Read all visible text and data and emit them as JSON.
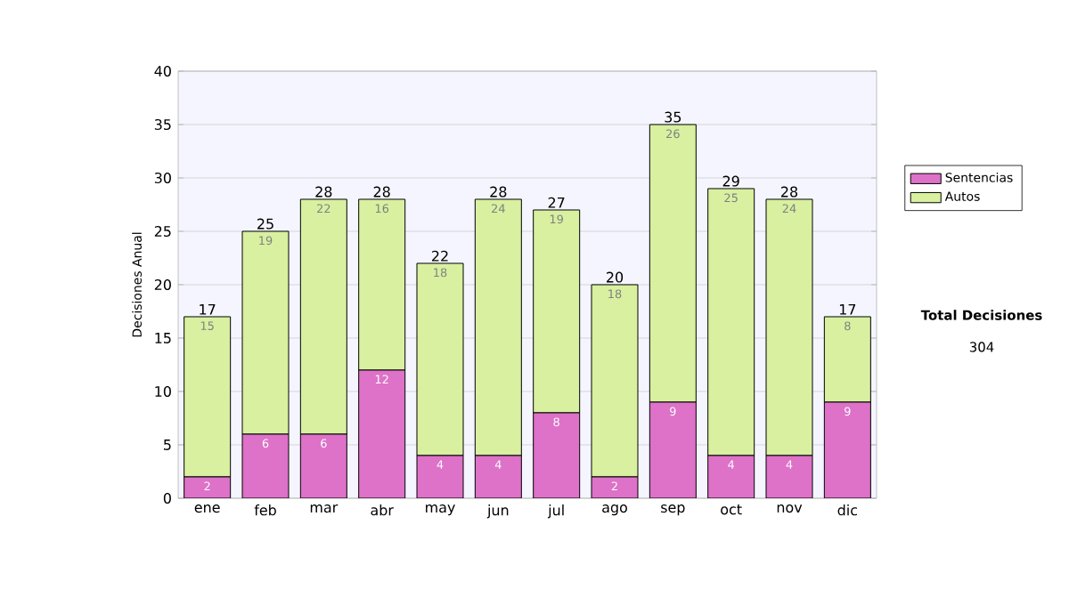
{
  "chart_data": {
    "type": "bar",
    "stacked": true,
    "ylabel": "Decisiones Anual",
    "categories": [
      "ene",
      "feb",
      "mar",
      "abr",
      "may",
      "jun",
      "jul",
      "ago",
      "sep",
      "oct",
      "nov",
      "dic"
    ],
    "series": [
      {
        "name": "Sentencias",
        "color": "#dd72c8",
        "values": [
          2,
          6,
          6,
          12,
          4,
          4,
          8,
          2,
          9,
          4,
          4,
          9
        ]
      },
      {
        "name": "Autos",
        "color": "#d8f0a0",
        "values": [
          15,
          19,
          22,
          16,
          18,
          24,
          19,
          18,
          26,
          25,
          24,
          8
        ]
      }
    ],
    "totals": [
      "17",
      "25",
      "28",
      "28",
      "22",
      "28",
      "27",
      "20",
      "35",
      "29",
      "28",
      "17"
    ],
    "data_labels": true,
    "ylim": [
      0,
      40
    ],
    "yticks": [
      0,
      5,
      10,
      15,
      20,
      25,
      30,
      35,
      40
    ],
    "grid": "y",
    "legend": "right",
    "annotations": [
      "Total Decisiones",
      "304"
    ]
  }
}
